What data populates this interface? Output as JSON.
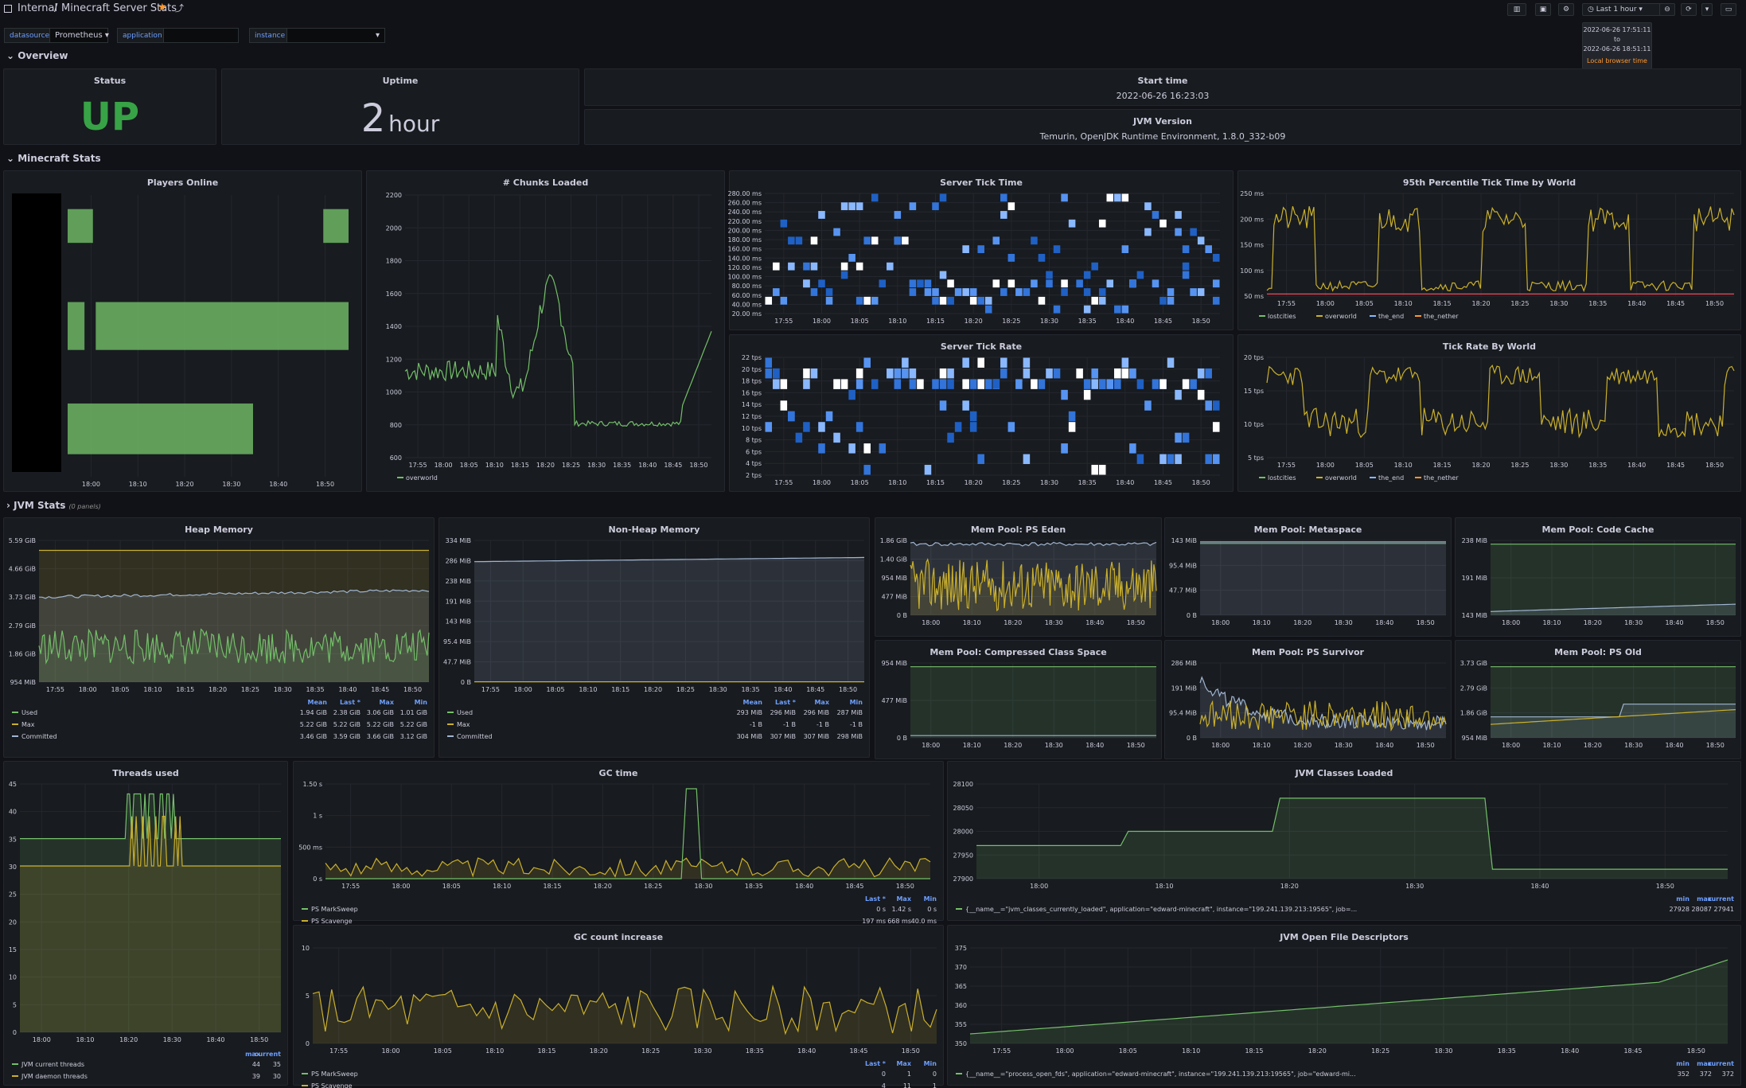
{
  "header": {
    "breadcrumb_root": "Internal",
    "separator": "/",
    "title": "Minecraft Server Stats",
    "time_range": "Last 1 hour"
  },
  "tooltip": {
    "from": "2022-06-26 17:51:11",
    "to_word": "to",
    "to": "2022-06-26 18:51:11",
    "zone": "Local browser time"
  },
  "vars": [
    {
      "label": "datasource",
      "value": "Prometheus"
    },
    {
      "label": "application",
      "value": ""
    },
    {
      "label": "instance",
      "value": ""
    }
  ],
  "rows": {
    "overview": "Overview",
    "minecraft": "Minecraft Stats",
    "jvm": "JVM Stats",
    "jvm_note": "(0 panels)"
  },
  "overview": {
    "status": {
      "title": "Status",
      "value": "UP",
      "color": "#37a346"
    },
    "uptime": {
      "title": "Uptime",
      "value": "2",
      "unit": "hour"
    },
    "start": {
      "title": "Start time",
      "value": "2022-06-26 16:23:03"
    },
    "jvm": {
      "title": "JVM Version",
      "value": "Temurin, OpenJDK Runtime Environment, 1.8.0_332-b09"
    }
  },
  "panels": {
    "players": {
      "title": "Players Online",
      "x_ticks": [
        "18:00",
        "18:10",
        "18:20",
        "18:30",
        "18:40",
        "18:50"
      ]
    },
    "chunks": {
      "title": "# Chunks Loaded",
      "y_ticks": [
        "2200",
        "2000",
        "1800",
        "1600",
        "1400",
        "1200",
        "1000",
        "800",
        "600"
      ],
      "x_ticks": [
        "17:55",
        "18:00",
        "18:05",
        "18:10",
        "18:15",
        "18:20",
        "18:25",
        "18:30",
        "18:35",
        "18:40",
        "18:45",
        "18:50"
      ],
      "legend": [
        "overworld"
      ]
    },
    "ticktime": {
      "title": "Server Tick Time",
      "y_ticks": [
        "280.00 ms",
        "260.00 ms",
        "240.00 ms",
        "220.00 ms",
        "200.00 ms",
        "180.00 ms",
        "160.00 ms",
        "140.00 ms",
        "120.00 ms",
        "100.00 ms",
        "80.00 ms",
        "60.00 ms",
        "40.00 ms",
        "20.00 ms"
      ],
      "x_ticks": [
        "17:55",
        "18:00",
        "18:05",
        "18:10",
        "18:15",
        "18:20",
        "18:25",
        "18:30",
        "18:35",
        "18:40",
        "18:45",
        "18:50"
      ]
    },
    "p95": {
      "title": "95th Percentile Tick Time by World",
      "y_ticks": [
        "250 ms",
        "200 ms",
        "150 ms",
        "100 ms",
        "50 ms"
      ],
      "x_ticks": [
        "17:55",
        "18:00",
        "18:05",
        "18:10",
        "18:15",
        "18:20",
        "18:25",
        "18:30",
        "18:35",
        "18:40",
        "18:45",
        "18:50"
      ],
      "legend": [
        "lostcities",
        "overworld",
        "the_end",
        "the_nether"
      ]
    },
    "tickrate": {
      "title": "Server Tick Rate",
      "y_ticks": [
        "22 tps",
        "20 tps",
        "18 tps",
        "16 tps",
        "14 tps",
        "12 tps",
        "10 tps",
        "8 tps",
        "6 tps",
        "4 tps",
        "2 tps"
      ],
      "x_ticks": [
        "17:55",
        "18:00",
        "18:05",
        "18:10",
        "18:15",
        "18:20",
        "18:25",
        "18:30",
        "18:35",
        "18:40",
        "18:45",
        "18:50"
      ]
    },
    "tickworld": {
      "title": "Tick Rate By World",
      "y_ticks": [
        "20 tps",
        "15 tps",
        "10 tps",
        "5 tps"
      ],
      "x_ticks": [
        "17:55",
        "18:00",
        "18:05",
        "18:10",
        "18:15",
        "18:20",
        "18:25",
        "18:30",
        "18:35",
        "18:40",
        "18:45",
        "18:50"
      ],
      "legend": [
        "lostcities",
        "overworld",
        "the_end",
        "the_nether"
      ]
    },
    "heap": {
      "title": "Heap Memory",
      "y_ticks": [
        "5.59 GiB",
        "4.66 GiB",
        "3.73 GiB",
        "2.79 GiB",
        "1.86 GiB",
        "954 MiB"
      ],
      "x_ticks": [
        "17:55",
        "18:00",
        "18:05",
        "18:10",
        "18:15",
        "18:20",
        "18:25",
        "18:30",
        "18:35",
        "18:40",
        "18:45",
        "18:50"
      ],
      "cols": [
        "Mean",
        "Last *",
        "Max",
        "Min"
      ],
      "rows": [
        [
          "Used",
          "1.94 GiB",
          "2.38 GiB",
          "3.06 GiB",
          "1.01 GiB"
        ],
        [
          "Max",
          "5.22 GiB",
          "5.22 GiB",
          "5.22 GiB",
          "5.22 GiB"
        ],
        [
          "Committed",
          "3.46 GiB",
          "3.59 GiB",
          "3.66 GiB",
          "3.12 GiB"
        ]
      ]
    },
    "nonheap": {
      "title": "Non-Heap Memory",
      "y_ticks": [
        "334 MiB",
        "286 MiB",
        "238 MiB",
        "191 MiB",
        "143 MiB",
        "95.4 MiB",
        "47.7 MiB",
        "0 B"
      ],
      "x_ticks": [
        "17:55",
        "18:00",
        "18:05",
        "18:10",
        "18:15",
        "18:20",
        "18:25",
        "18:30",
        "18:35",
        "18:40",
        "18:45",
        "18:50"
      ],
      "cols": [
        "Mean",
        "Last *",
        "Max",
        "Min"
      ],
      "rows": [
        [
          "Used",
          "293 MiB",
          "296 MiB",
          "296 MiB",
          "287 MiB"
        ],
        [
          "Max",
          "-1 B",
          "-1 B",
          "-1 B",
          "-1 B"
        ],
        [
          "Committed",
          "304 MiB",
          "307 MiB",
          "307 MiB",
          "298 MiB"
        ]
      ]
    },
    "eden": {
      "title": "Mem Pool: PS Eden",
      "y_ticks": [
        "1.86 GiB",
        "1.40 GiB",
        "954 MiB",
        "477 MiB",
        "0 B"
      ],
      "x_ticks": [
        "18:00",
        "18:10",
        "18:20",
        "18:30",
        "18:40",
        "18:50"
      ]
    },
    "meta": {
      "title": "Mem Pool: Metaspace",
      "y_ticks": [
        "143 MiB",
        "95.4 MiB",
        "47.7 MiB",
        "0 B"
      ],
      "x_ticks": [
        "18:00",
        "18:10",
        "18:20",
        "18:30",
        "18:40",
        "18:50"
      ]
    },
    "code": {
      "title": "Mem Pool: Code Cache",
      "y_ticks": [
        "238 MiB",
        "191 MiB",
        "143 MiB"
      ],
      "x_ticks": [
        "18:00",
        "18:10",
        "18:20",
        "18:30",
        "18:40",
        "18:50"
      ]
    },
    "ccs": {
      "title": "Mem Pool: Compressed Class Space",
      "y_ticks": [
        "954 MiB",
        "477 MiB",
        "0 B"
      ],
      "x_ticks": [
        "18:00",
        "18:10",
        "18:20",
        "18:30",
        "18:40",
        "18:50"
      ]
    },
    "survivor": {
      "title": "Mem Pool: PS Survivor",
      "y_ticks": [
        "286 MiB",
        "191 MiB",
        "95.4 MiB",
        "0 B"
      ],
      "x_ticks": [
        "18:00",
        "18:10",
        "18:20",
        "18:30",
        "18:40",
        "18:50"
      ]
    },
    "old": {
      "title": "Mem Pool: PS Old",
      "y_ticks": [
        "3.73 GiB",
        "2.79 GiB",
        "1.86 GiB",
        "954 MiB"
      ],
      "x_ticks": [
        "18:00",
        "18:10",
        "18:20",
        "18:30",
        "18:40",
        "18:50"
      ]
    },
    "threads": {
      "title": "Threads used",
      "y_ticks": [
        "45",
        "40",
        "35",
        "30",
        "25",
        "20",
        "15",
        "10",
        "5",
        "0"
      ],
      "x_ticks": [
        "18:00",
        "18:10",
        "18:20",
        "18:30",
        "18:40",
        "18:50"
      ],
      "cols": [
        "max",
        "current"
      ],
      "rows": [
        [
          "JVM current threads",
          "44",
          "35"
        ],
        [
          "JVM daemon threads",
          "39",
          "30"
        ]
      ]
    },
    "gctime": {
      "title": "GC time",
      "y_ticks": [
        "1.50 s",
        "1 s",
        "500 ms",
        "0 s"
      ],
      "x_ticks": [
        "17:55",
        "18:00",
        "18:05",
        "18:10",
        "18:15",
        "18:20",
        "18:25",
        "18:30",
        "18:35",
        "18:40",
        "18:45",
        "18:50"
      ],
      "cols": [
        "Last *",
        "Max",
        "Min"
      ],
      "rows": [
        [
          "PS MarkSweep",
          "0 s",
          "1.42 s",
          "0 s"
        ],
        [
          "PS Scavenge",
          "197 ms",
          "668 ms",
          "40.0 ms"
        ]
      ]
    },
    "classes": {
      "title": "JVM Classes Loaded",
      "y_ticks": [
        "28100",
        "28050",
        "28000",
        "27950",
        "27900"
      ],
      "x_ticks": [
        "18:00",
        "18:10",
        "18:20",
        "18:30",
        "18:40",
        "18:50"
      ],
      "cols": [
        "min",
        "max",
        "current"
      ],
      "rows": [
        [
          "{__name__=\"jvm_classes_currently_loaded\", application=\"edward-minecraft\", instance=\"199.241.139.213:19565\", job=...",
          "27928",
          "28087",
          "27941"
        ]
      ]
    },
    "gccount": {
      "title": "GC count increase",
      "y_ticks": [
        "10",
        "5",
        "0"
      ],
      "x_ticks": [
        "17:55",
        "18:00",
        "18:05",
        "18:10",
        "18:15",
        "18:20",
        "18:25",
        "18:30",
        "18:35",
        "18:40",
        "18:45",
        "18:50"
      ],
      "cols": [
        "Last *",
        "Max",
        "Min"
      ],
      "rows": [
        [
          "PS MarkSweep",
          "0",
          "1",
          "0"
        ],
        [
          "PS Scavenge",
          "4",
          "11",
          "1"
        ]
      ]
    },
    "fds": {
      "title": "JVM Open File Descriptors",
      "y_ticks": [
        "375",
        "370",
        "365",
        "360",
        "355",
        "350"
      ],
      "x_ticks": [
        "17:55",
        "18:00",
        "18:05",
        "18:10",
        "18:15",
        "18:20",
        "18:25",
        "18:30",
        "18:35",
        "18:40",
        "18:45",
        "18:50"
      ],
      "cols": [
        "min",
        "max",
        "current"
      ],
      "rows": [
        [
          "{__name__=\"process_open_fds\", application=\"edward-minecraft\", instance=\"199.241.139.213:19565\", job=\"edward-mi...",
          "352",
          "372",
          "372"
        ]
      ]
    }
  },
  "colors": {
    "green": "#73bf69",
    "yellow": "#cab02c",
    "blue": "#8ab8ff",
    "red": "#f2495c",
    "orange": "#ff9830"
  }
}
